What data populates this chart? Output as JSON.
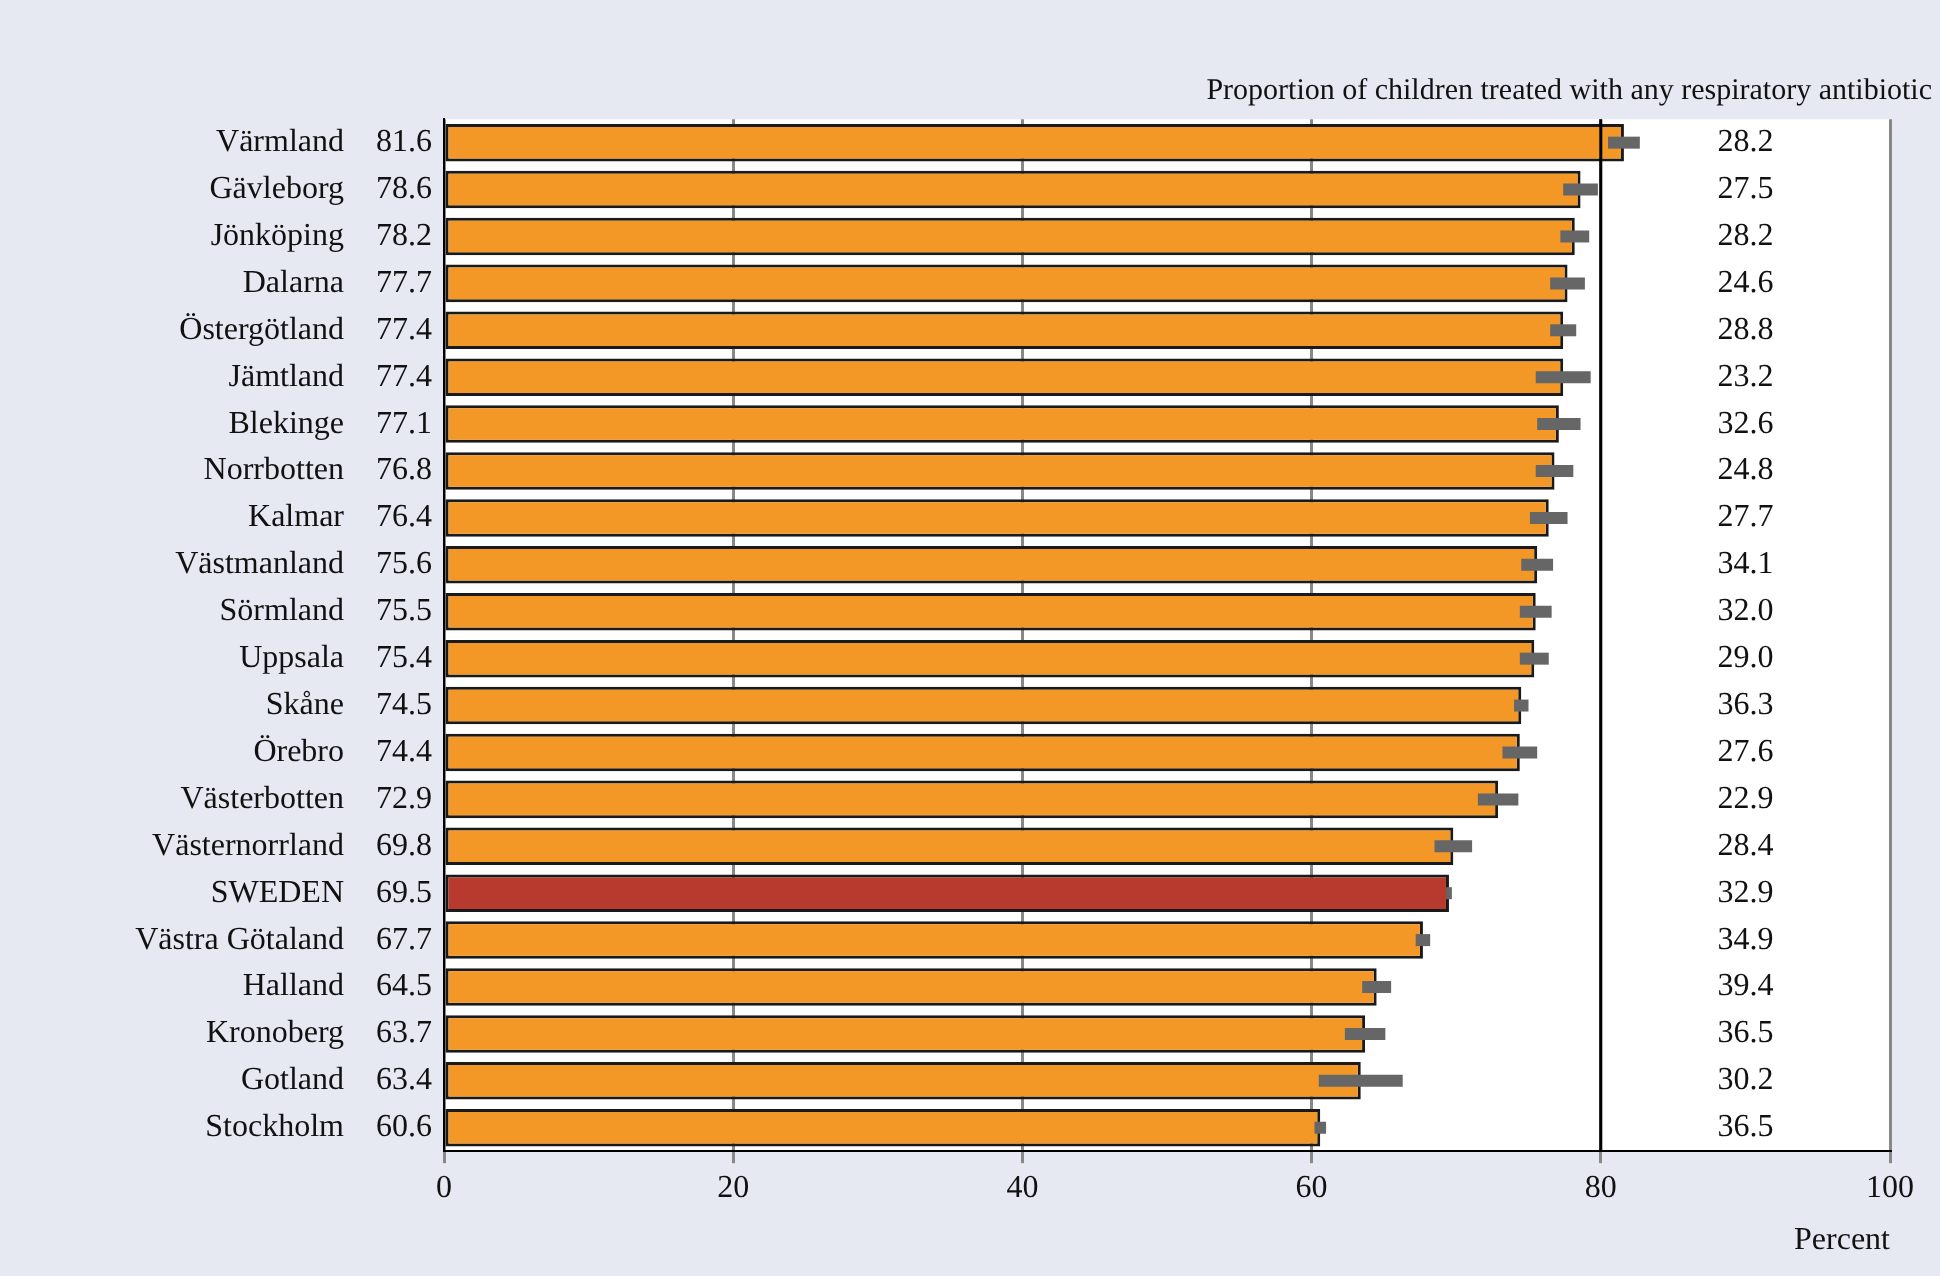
{
  "chart_data": {
    "type": "bar",
    "orientation": "horizontal",
    "xlabel": "Percent",
    "categories": [
      "Värmland",
      "Gävleborg",
      "Jönköping",
      "Dalarna",
      "Östergötland",
      "Jämtland",
      "Blekinge",
      "Norrbotten",
      "Kalmar",
      "Västmanland",
      "Sörmland",
      "Uppsala",
      "Skåne",
      "Örebro",
      "Västerbotten",
      "Västernorrland",
      "SWEDEN",
      "Västra Götaland",
      "Halland",
      "Kronoberg",
      "Gotland",
      "Stockholm"
    ],
    "values": [
      81.6,
      78.6,
      78.2,
      77.7,
      77.4,
      77.4,
      77.1,
      76.8,
      76.4,
      75.6,
      75.5,
      75.4,
      74.5,
      74.4,
      72.9,
      69.8,
      69.5,
      67.7,
      64.5,
      63.7,
      63.4,
      60.6
    ],
    "errors": [
      1.1,
      1.2,
      1.0,
      1.2,
      0.9,
      1.9,
      1.5,
      1.3,
      1.3,
      1.1,
      1.1,
      1.0,
      0.5,
      1.2,
      1.4,
      1.3,
      0.2,
      0.5,
      1.0,
      1.4,
      2.9,
      0.4
    ],
    "colors": [
      "#f39826",
      "#f39826",
      "#f39826",
      "#f39826",
      "#f39826",
      "#f39826",
      "#f39826",
      "#f39826",
      "#f39826",
      "#f39826",
      "#f39826",
      "#f39826",
      "#f39826",
      "#f39826",
      "#f39826",
      "#f39826",
      "#b8392d",
      "#f39826",
      "#f39826",
      "#f39826",
      "#f39826",
      "#f39826"
    ],
    "xlim": [
      0,
      100
    ],
    "xticks": [
      0,
      20,
      40,
      60,
      80,
      100
    ],
    "grid": "x",
    "data_labels": true,
    "ref_lines": [
      {
        "axis": "x",
        "value": 80,
        "color": "#000000"
      }
    ],
    "annotations": [
      "Proportion of children treated with any respiratory antibiotic",
      "28.2",
      "27.5",
      "28.2",
      "24.6",
      "28.8",
      "23.2",
      "32.6",
      "24.8",
      "27.7",
      "34.1",
      "32.0",
      "29.0",
      "36.3",
      "27.6",
      "22.9",
      "28.4",
      "32.9",
      "34.9",
      "39.4",
      "36.5",
      "30.2",
      "36.5"
    ]
  }
}
